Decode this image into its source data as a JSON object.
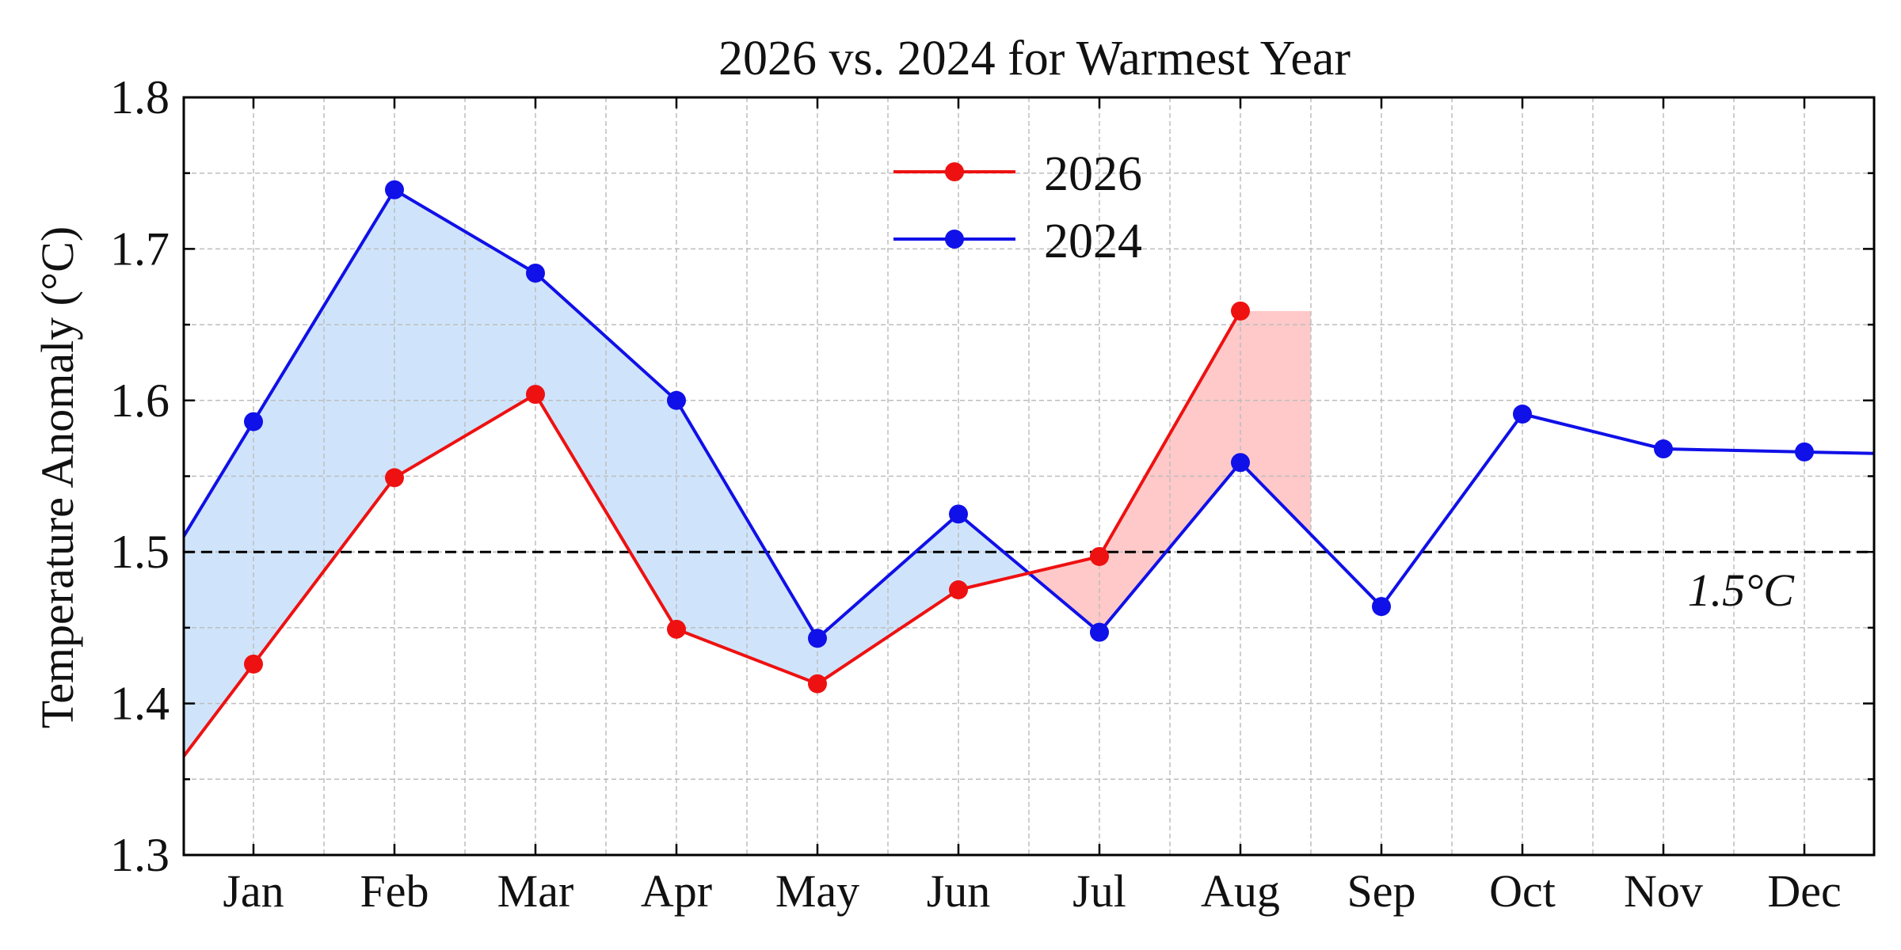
{
  "chart_data": {
    "type": "line",
    "title": "2026 vs. 2024 for Warmest Year",
    "xlabel": "",
    "ylabel": "Temperature Anomaly (°C)",
    "categories": [
      "Jan",
      "Feb",
      "Mar",
      "Apr",
      "May",
      "Jun",
      "Jul",
      "Aug",
      "Sep",
      "Oct",
      "Nov",
      "Dec"
    ],
    "ylim": [
      1.3,
      1.8
    ],
    "yticks": [
      "1.3",
      "1.4",
      "1.5",
      "1.6",
      "1.7",
      "1.8"
    ],
    "grid": true,
    "legend_position": "top-center",
    "series": [
      {
        "name": "2026",
        "color": "#ee1111",
        "values": [
          1.426,
          1.549,
          1.604,
          1.449,
          1.413,
          1.475,
          1.497,
          1.659,
          null,
          null,
          null,
          null
        ]
      },
      {
        "name": "2024",
        "color": "#1010e8",
        "values": [
          1.586,
          1.739,
          1.684,
          1.6,
          1.443,
          1.525,
          1.447,
          1.559,
          1.464,
          1.591,
          1.568,
          1.566
        ]
      }
    ],
    "reference_line": {
      "value": 1.5,
      "label": "1.5°C",
      "style": "dashed",
      "color": "#000000"
    },
    "shading": {
      "2024_higher_color": "#cfe4fb",
      "2026_higher_color": "#ffc9c9"
    }
  }
}
